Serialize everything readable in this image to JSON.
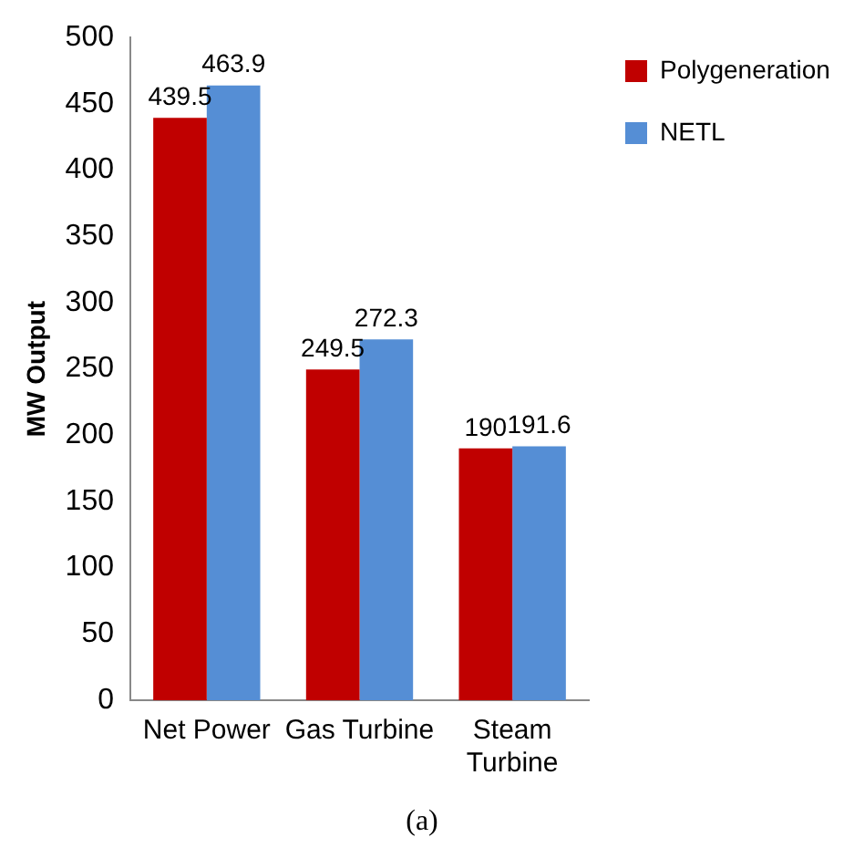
{
  "chart_data": {
    "type": "bar",
    "ylabel": "MW Output",
    "categories": [
      "Net Power",
      "Gas Turbine",
      "Steam Turbine"
    ],
    "series": [
      {
        "name": "Polygeneration",
        "color": "#c00000",
        "values": [
          439.5,
          249.5,
          190
        ]
      },
      {
        "name": "NETL",
        "color": "#558ed5",
        "values": [
          463.9,
          272.3,
          191.6
        ]
      }
    ],
    "ylim": [
      0,
      500
    ],
    "yticks": [
      0,
      50,
      100,
      150,
      200,
      250,
      300,
      350,
      400,
      450,
      500
    ],
    "grid": false,
    "legend": "right",
    "data_labels": true,
    "annotations": [
      "(a)"
    ]
  }
}
